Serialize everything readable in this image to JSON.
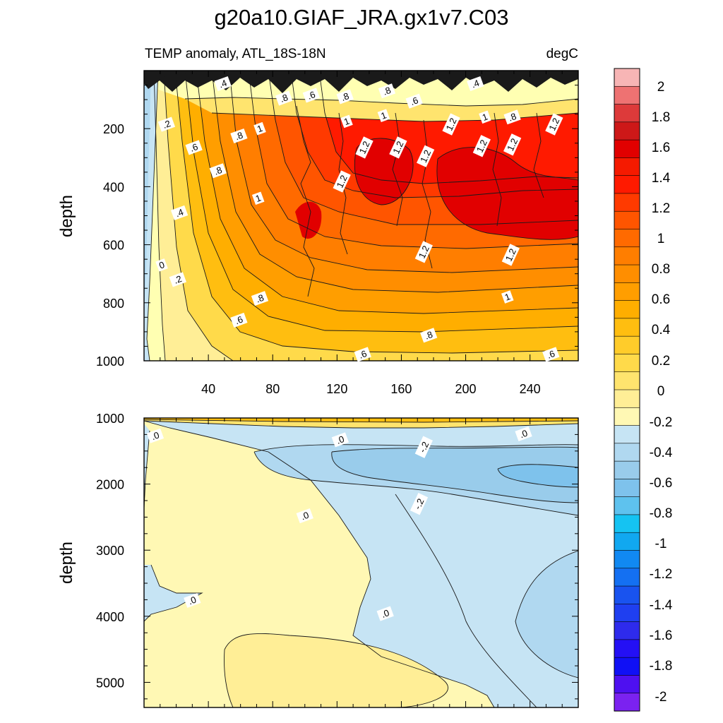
{
  "figure": {
    "title": "g20a10.GIAF_JRA.gx1v7.C03"
  },
  "chart_data": [
    {
      "type": "contour",
      "panel": "upper",
      "title_left": "TEMP anomaly, ATL_18S-18N",
      "title_right": "degC",
      "xlabel": "",
      "ylabel": "depth",
      "xlim": [
        0,
        270
      ],
      "ylim": [
        1000,
        0
      ],
      "x_ticks": [
        40,
        80,
        120,
        160,
        200,
        240
      ],
      "y_ticks": [
        200,
        400,
        600,
        800,
        1000
      ],
      "contour_labels": [
        {
          "text": ".4",
          "x": 49,
          "y": 45
        },
        {
          "text": ".8",
          "x": 87,
          "y": 95
        },
        {
          "text": ".6",
          "x": 104,
          "y": 85
        },
        {
          "text": ".8",
          "x": 125,
          "y": 90
        },
        {
          "text": ".8",
          "x": 151,
          "y": 70
        },
        {
          "text": ".6",
          "x": 168,
          "y": 105
        },
        {
          "text": ".4",
          "x": 206,
          "y": 45
        },
        {
          "text": ".2",
          "x": 14,
          "y": 185
        },
        {
          "text": ".8",
          "x": 59,
          "y": 225
        },
        {
          "text": ".6",
          "x": 31,
          "y": 265
        },
        {
          "text": "1",
          "x": 72,
          "y": 200
        },
        {
          "text": "1",
          "x": 126,
          "y": 175
        },
        {
          "text": "1",
          "x": 149,
          "y": 155
        },
        {
          "text": "1.2",
          "x": 137,
          "y": 265
        },
        {
          "text": "1.2",
          "x": 158,
          "y": 265
        },
        {
          "text": "1.2",
          "x": 175,
          "y": 295
        },
        {
          "text": "1.2",
          "x": 191,
          "y": 185
        },
        {
          "text": "1",
          "x": 212,
          "y": 160
        },
        {
          "text": ".8",
          "x": 229,
          "y": 160
        },
        {
          "text": "1.2",
          "x": 210,
          "y": 260
        },
        {
          "text": "1.2",
          "x": 229,
          "y": 255
        },
        {
          "text": "1.2",
          "x": 255,
          "y": 185
        },
        {
          "text": ".8",
          "x": 46,
          "y": 345
        },
        {
          "text": "1.2",
          "x": 123,
          "y": 382
        },
        {
          "text": ".4",
          "x": 22,
          "y": 490
        },
        {
          "text": "1",
          "x": 71,
          "y": 440
        },
        {
          "text": "1.2",
          "x": 174,
          "y": 625
        },
        {
          "text": "1.2",
          "x": 228,
          "y": 635
        },
        {
          "text": "0",
          "x": 11,
          "y": 670
        },
        {
          "text": ".2",
          "x": 21,
          "y": 720
        },
        {
          "text": ".8",
          "x": 72,
          "y": 785
        },
        {
          "text": "1",
          "x": 226,
          "y": 780
        },
        {
          "text": ".6",
          "x": 59,
          "y": 860
        },
        {
          "text": ".8",
          "x": 177,
          "y": 912
        },
        {
          "text": ".6",
          "x": 136,
          "y": 978
        },
        {
          "text": ".6",
          "x": 253,
          "y": 978
        }
      ]
    },
    {
      "type": "contour",
      "panel": "lower",
      "xlabel": "",
      "ylabel": "depth",
      "xlim": [
        0,
        270
      ],
      "ylim": [
        5380,
        1000
      ],
      "y_ticks": [
        1000,
        2000,
        3000,
        4000,
        5000
      ],
      "contour_labels": [
        {
          "text": ".0",
          "x": 7,
          "y": 1270
        },
        {
          "text": ".0",
          "x": 122,
          "y": 1330
        },
        {
          "text": ".0",
          "x": 236,
          "y": 1240
        },
        {
          "text": "-.2",
          "x": 174,
          "y": 1440
        },
        {
          "text": "-.2",
          "x": 171,
          "y": 2300
        },
        {
          "text": ".0",
          "x": 100,
          "y": 2480
        },
        {
          "text": ".0",
          "x": 30,
          "y": 3760
        },
        {
          "text": ".0",
          "x": 150,
          "y": 3960
        }
      ]
    }
  ],
  "colorbar": {
    "labels": [
      "2",
      "1.8",
      "1.6",
      "1.4",
      "1.2",
      "1",
      "0.8",
      "0.6",
      "0.4",
      "0.2",
      "0",
      "-0.2",
      "-0.4",
      "-0.6",
      "-0.8",
      "-1",
      "-1.2",
      "-1.4",
      "-1.6",
      "-1.8",
      "-2"
    ],
    "colors": [
      "#F7B5B5",
      "#EE7272",
      "#DD3A3A",
      "#CD1818",
      "#E10000",
      "#F51A00",
      "#FF1A00",
      "#FF3A00",
      "#FF5500",
      "#FF6A00",
      "#FF7E00",
      "#FF8E00",
      "#FF9E00",
      "#FFAE00",
      "#FFBE10",
      "#FFCC2A",
      "#FFDA4A",
      "#FFE46E",
      "#FFEE96",
      "#FFF8B4",
      "#C6E4F4",
      "#B0D8F0",
      "#99CCEB",
      "#7EC2EC",
      "#5EC2EE",
      "#15C3F2",
      "#11A8F0",
      "#1189F2",
      "#1470F2",
      "#1953EF",
      "#1F3FF0",
      "#2E2BEC",
      "#2410F5",
      "#1010F5",
      "#4E10F0",
      "#7B22F0"
    ]
  }
}
